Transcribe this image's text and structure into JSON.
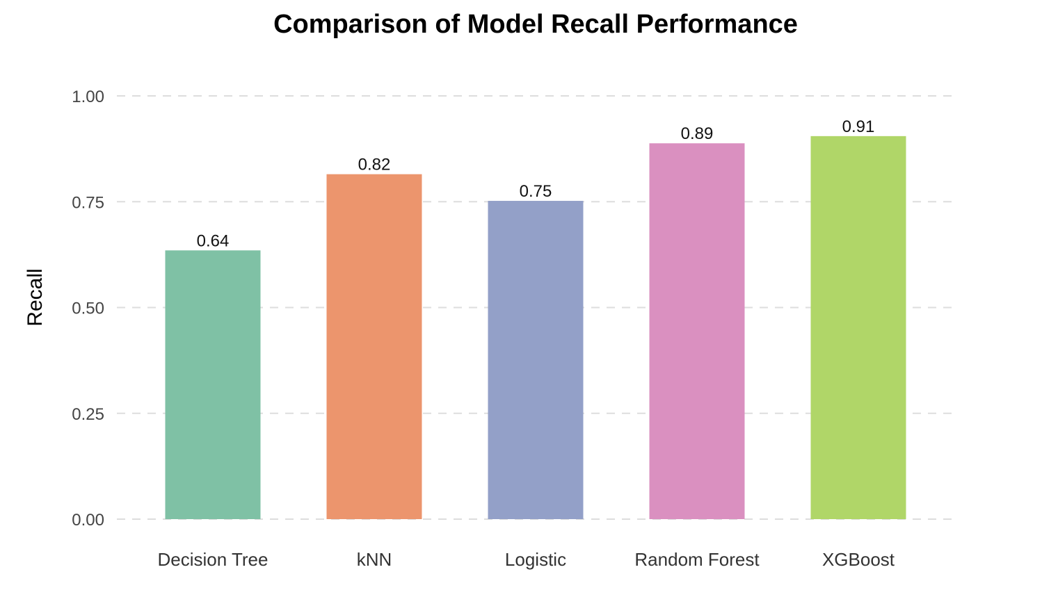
{
  "chart_data": {
    "type": "bar",
    "title": "Comparison of Model Recall Performance",
    "xlabel": "",
    "ylabel": "Recall",
    "categories": [
      "Decision Tree",
      "kNN",
      "Logistic",
      "Random Forest",
      "XGBoost"
    ],
    "values": [
      0.635,
      0.815,
      0.752,
      0.888,
      0.905
    ],
    "data_labels": [
      "0.64",
      "0.82",
      "0.75",
      "0.89",
      "0.91"
    ],
    "colors": [
      "#7FC1A5",
      "#EC956D",
      "#93A0C8",
      "#DA90C0",
      "#B0D668"
    ],
    "ylim": [
      0,
      1
    ],
    "yticks": [
      0,
      0.25,
      0.5,
      0.75,
      1
    ],
    "ytick_labels": [
      "0.00",
      "0.25",
      "0.50",
      "0.75",
      "1.00"
    ],
    "grid": "horizontal dashed",
    "legend": "none"
  }
}
